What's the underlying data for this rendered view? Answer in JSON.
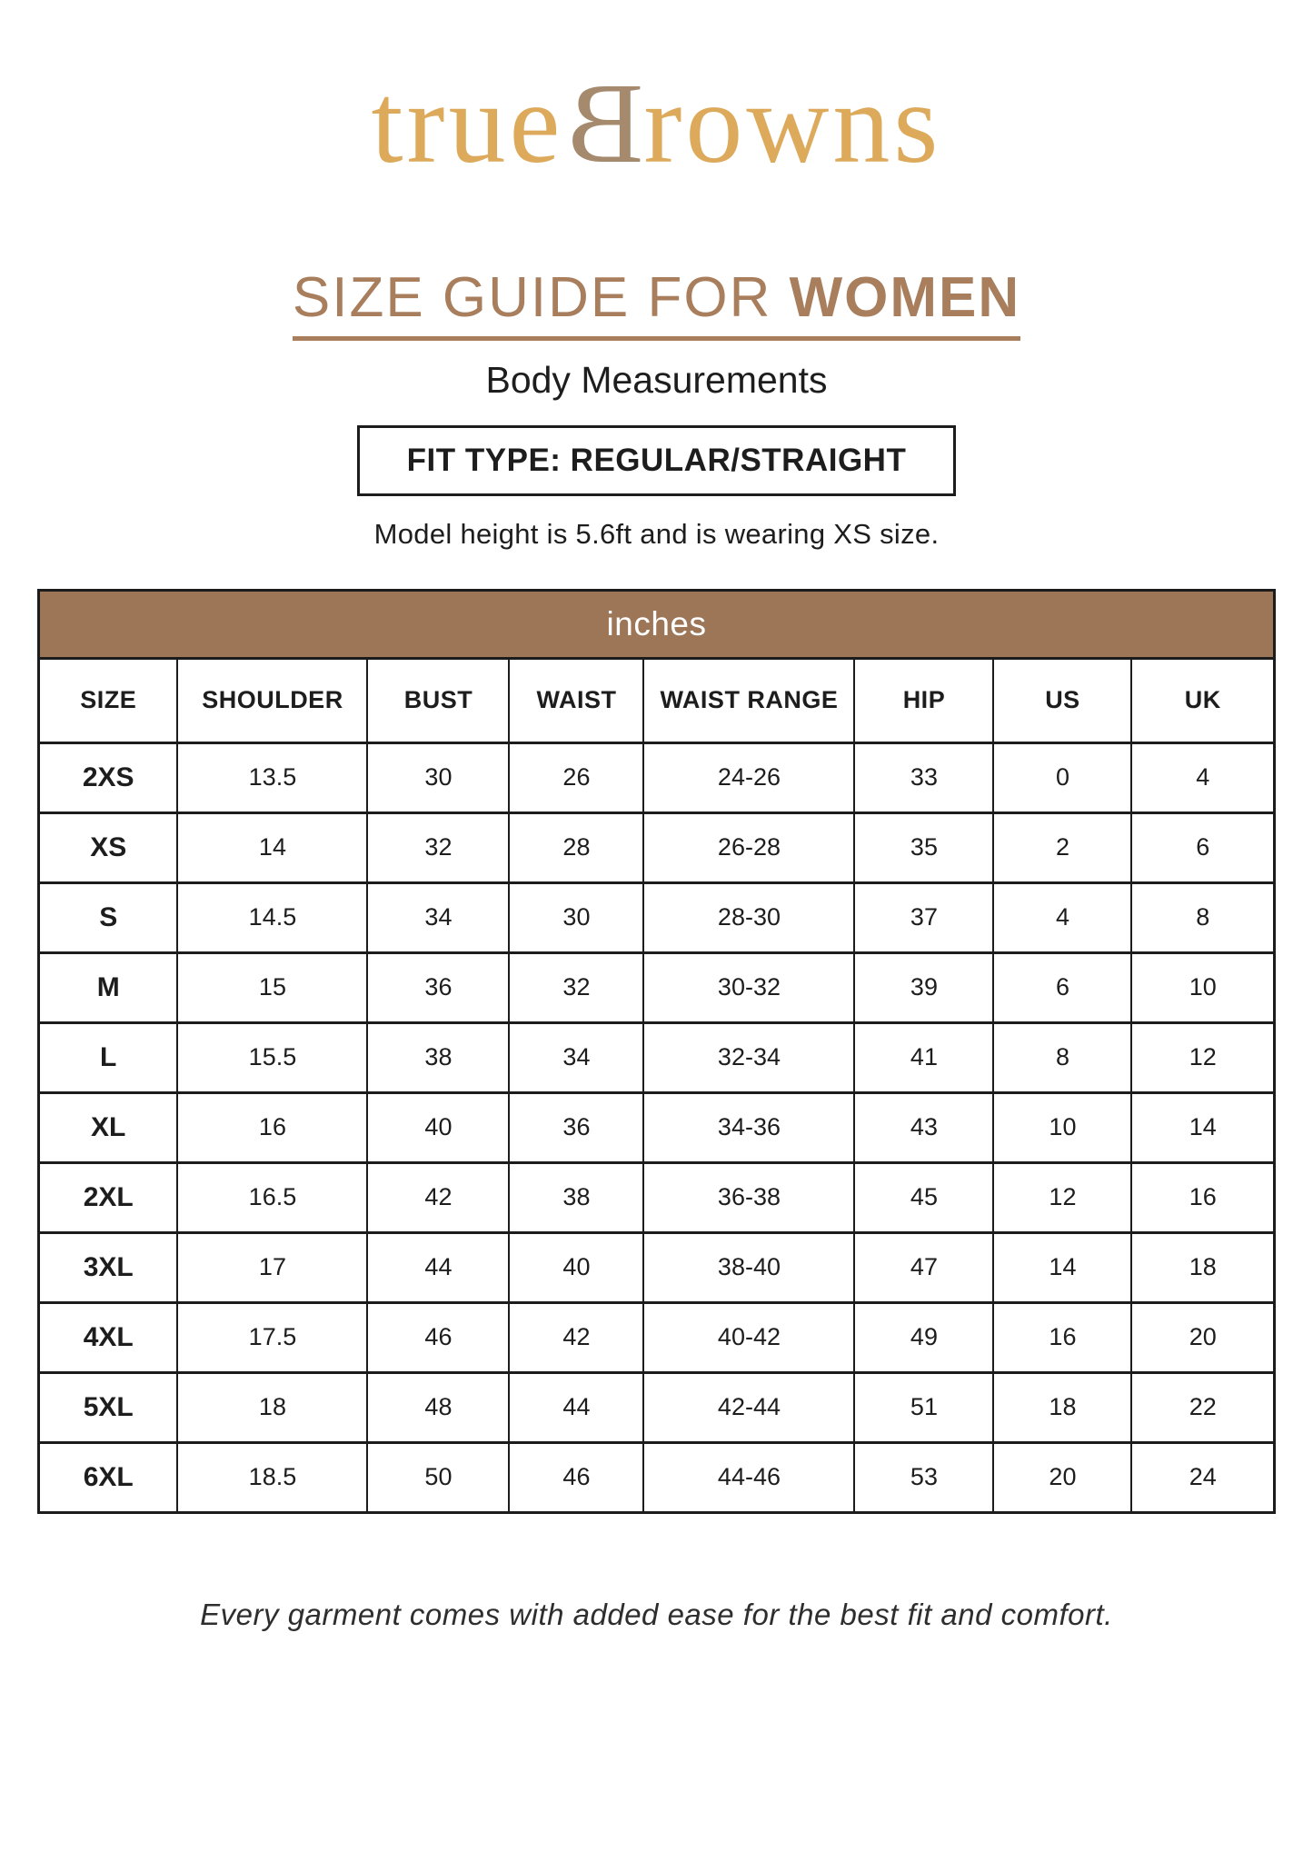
{
  "brand": {
    "prefix": "true",
    "mirrored_letter": "B",
    "suffix": "rowns"
  },
  "title": {
    "regular": "SIZE GUIDE FOR ",
    "bold": "WOMEN"
  },
  "subtitle": "Body Measurements",
  "fit_type_label": "FIT TYPE: REGULAR/STRAIGHT",
  "model_note": "Model height is 5.6ft and is wearing XS size.",
  "table": {
    "unit_header": "inches",
    "columns": [
      "SIZE",
      "SHOULDER",
      "BUST",
      "WAIST",
      "WAIST RANGE",
      "HIP",
      "US",
      "UK"
    ],
    "rows": [
      [
        "2XS",
        "13.5",
        "30",
        "26",
        "24-26",
        "33",
        "0",
        "4"
      ],
      [
        "XS",
        "14",
        "32",
        "28",
        "26-28",
        "35",
        "2",
        "6"
      ],
      [
        "S",
        "14.5",
        "34",
        "30",
        "28-30",
        "37",
        "4",
        "8"
      ],
      [
        "M",
        "15",
        "36",
        "32",
        "30-32",
        "39",
        "6",
        "10"
      ],
      [
        "L",
        "15.5",
        "38",
        "34",
        "32-34",
        "41",
        "8",
        "12"
      ],
      [
        "XL",
        "16",
        "40",
        "36",
        "34-36",
        "43",
        "10",
        "14"
      ],
      [
        "2XL",
        "16.5",
        "42",
        "38",
        "36-38",
        "45",
        "12",
        "16"
      ],
      [
        "3XL",
        "17",
        "44",
        "40",
        "38-40",
        "47",
        "14",
        "18"
      ],
      [
        "4XL",
        "17.5",
        "46",
        "42",
        "40-42",
        "49",
        "16",
        "20"
      ],
      [
        "5XL",
        "18",
        "48",
        "44",
        "42-44",
        "51",
        "18",
        "22"
      ],
      [
        "6XL",
        "18.5",
        "50",
        "46",
        "44-46",
        "53",
        "20",
        "24"
      ]
    ]
  },
  "footer_note": "Every garment comes with added ease for the best fit and comfort.",
  "colors": {
    "logo_gold": "#ddaa5c",
    "logo_b_brown": "#a58a6e",
    "title_brown": "#a87e5d",
    "table_band_brown": "#9d7557",
    "border_black": "#1c1c1c",
    "text_black": "#1d1d1d"
  }
}
